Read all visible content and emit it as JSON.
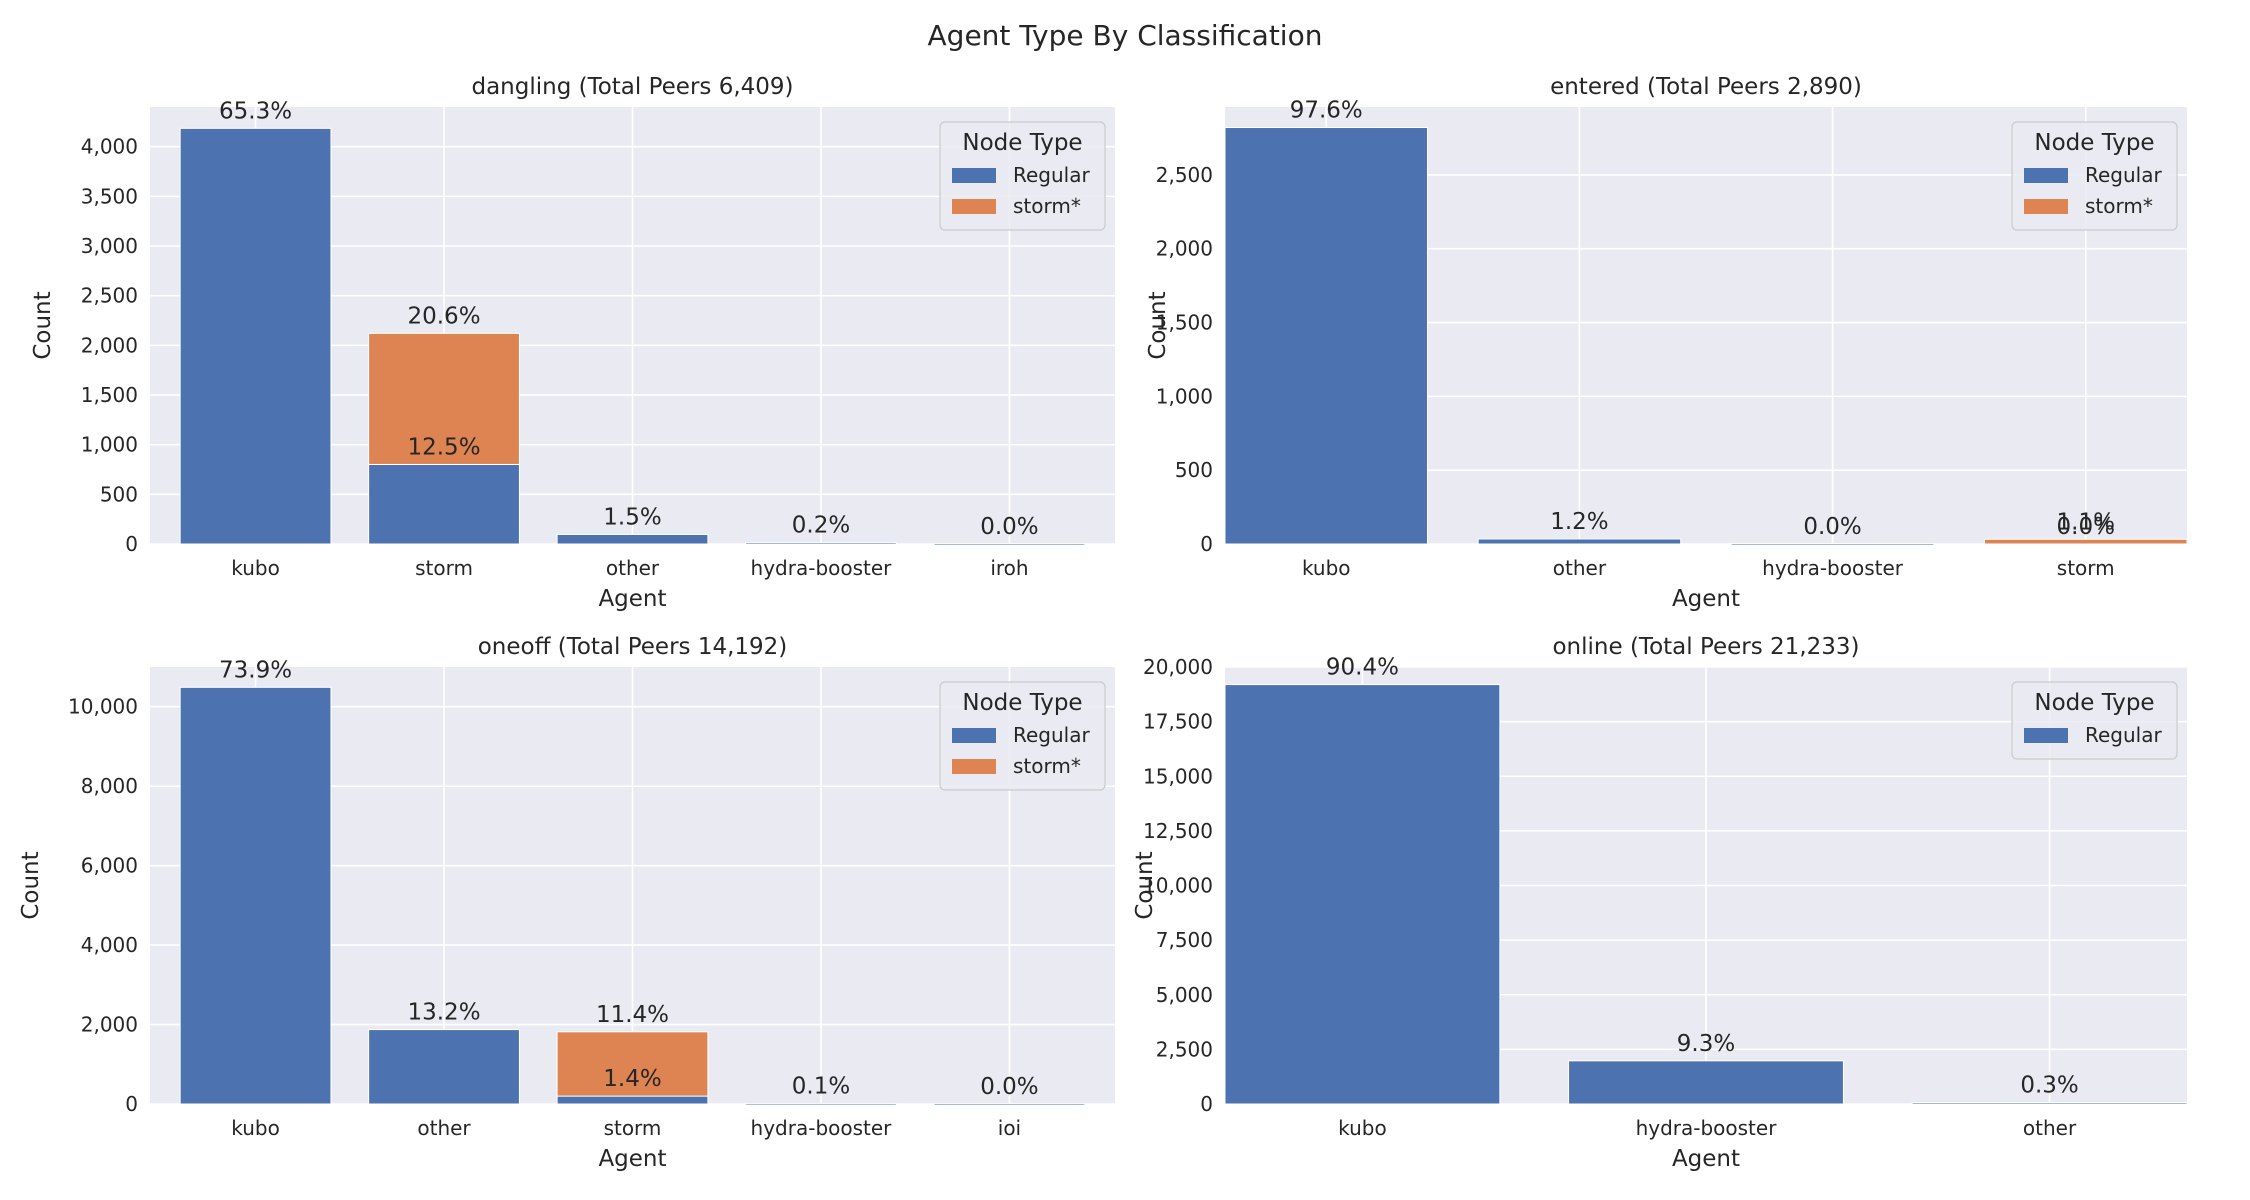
{
  "colors": {
    "regular": "#4c72b0",
    "storm": "#dd8452",
    "axes_bg": "#eaeaf2",
    "grid": "#ffffff",
    "text": "#262626"
  },
  "chart_data": {
    "title": "Agent Type By Classification",
    "panels": [
      {
        "type": "bar",
        "stacked": true,
        "title": "dangling (Total Peers 6,409)",
        "xlabel": "Agent",
        "ylabel": "Count",
        "ylim": [
          0,
          4400
        ],
        "yticks": [
          0,
          500,
          1000,
          1500,
          2000,
          2500,
          3000,
          3500,
          4000
        ],
        "ytick_labels": [
          "0",
          "500",
          "1,000",
          "1,500",
          "2,000",
          "2,500",
          "3,000",
          "3,500",
          "4,000"
        ],
        "categories": [
          "kubo",
          "storm",
          "other",
          "hydra-booster",
          "iroh"
        ],
        "series": [
          {
            "name": "Regular",
            "values": [
              4185,
              801,
              96,
              13,
              1
            ]
          },
          {
            "name": "storm*",
            "values": [
              0,
              1320,
              0,
              0,
              0
            ]
          }
        ],
        "labels": [
          {
            "category": "kubo",
            "text": "65.3%",
            "at": 4185
          },
          {
            "category": "storm",
            "text": "12.5%",
            "at": 801
          },
          {
            "category": "storm",
            "text": "20.6%",
            "at": 2121
          },
          {
            "category": "other",
            "text": "1.5%",
            "at": 96
          },
          {
            "category": "hydra-booster",
            "text": "0.2%",
            "at": 13
          },
          {
            "category": "iroh",
            "text": "0.0%",
            "at": 1
          }
        ],
        "legend": {
          "title": "Node Type",
          "position": "top-right",
          "entries": [
            "Regular",
            "storm*"
          ]
        }
      },
      {
        "type": "bar",
        "stacked": true,
        "title": "entered (Total Peers 2,890)",
        "xlabel": "Agent",
        "ylabel": "Count",
        "ylim": [
          0,
          2960
        ],
        "yticks": [
          0,
          500,
          1000,
          1500,
          2000,
          2500
        ],
        "ytick_labels": [
          "0",
          "500",
          "1,000",
          "1,500",
          "2,000",
          "2,500"
        ],
        "categories": [
          "kubo",
          "other",
          "hydra-booster",
          "storm"
        ],
        "series": [
          {
            "name": "Regular",
            "values": [
              2821,
              34,
              1,
              0
            ]
          },
          {
            "name": "storm*",
            "values": [
              0,
              0,
              0,
              32
            ]
          }
        ],
        "labels": [
          {
            "category": "kubo",
            "text": "97.6%",
            "at": 2821
          },
          {
            "category": "other",
            "text": "1.2%",
            "at": 34
          },
          {
            "category": "hydra-booster",
            "text": "0.0%",
            "at": 1
          },
          {
            "category": "storm",
            "text": "1.1%",
            "at": 32
          },
          {
            "category": "storm",
            "text": "0.0%",
            "at": 0
          }
        ],
        "legend": {
          "title": "Node Type",
          "position": "top-right",
          "entries": [
            "Regular",
            "storm*"
          ]
        }
      },
      {
        "type": "bar",
        "stacked": true,
        "title": "oneoff (Total Peers 14,192)",
        "xlabel": "Agent",
        "ylabel": "Count",
        "ylim": [
          0,
          11000
        ],
        "yticks": [
          0,
          2000,
          4000,
          6000,
          8000,
          10000
        ],
        "ytick_labels": [
          "0",
          "2,000",
          "4,000",
          "6,000",
          "8,000",
          "10,000"
        ],
        "categories": [
          "kubo",
          "other",
          "storm",
          "hydra-booster",
          "ioi"
        ],
        "series": [
          {
            "name": "Regular",
            "values": [
              10488,
              1873,
              199,
              14,
              1
            ]
          },
          {
            "name": "storm*",
            "values": [
              0,
              0,
              1618,
              0,
              0
            ]
          }
        ],
        "labels": [
          {
            "category": "kubo",
            "text": "73.9%",
            "at": 10488
          },
          {
            "category": "other",
            "text": "13.2%",
            "at": 1873
          },
          {
            "category": "storm",
            "text": "1.4%",
            "at": 199
          },
          {
            "category": "storm",
            "text": "11.4%",
            "at": 1817
          },
          {
            "category": "hydra-booster",
            "text": "0.1%",
            "at": 14
          },
          {
            "category": "ioi",
            "text": "0.0%",
            "at": 1
          }
        ],
        "legend": {
          "title": "Node Type",
          "position": "top-right",
          "entries": [
            "Regular",
            "storm*"
          ]
        }
      },
      {
        "type": "bar",
        "stacked": true,
        "title": "online (Total Peers 21,233)",
        "xlabel": "Agent",
        "ylabel": "Count",
        "ylim": [
          0,
          20000
        ],
        "yticks": [
          0,
          2500,
          5000,
          7500,
          10000,
          12500,
          15000,
          17500,
          20000
        ],
        "ytick_labels": [
          "0",
          "2,500",
          "5,000",
          "7,500",
          "10,000",
          "12,500",
          "15,000",
          "17,500",
          "20,000"
        ],
        "categories": [
          "kubo",
          "hydra-booster",
          "other"
        ],
        "series": [
          {
            "name": "Regular",
            "values": [
              19195,
              1975,
              64
            ]
          }
        ],
        "labels": [
          {
            "category": "kubo",
            "text": "90.4%",
            "at": 19195
          },
          {
            "category": "hydra-booster",
            "text": "9.3%",
            "at": 1975
          },
          {
            "category": "other",
            "text": "0.3%",
            "at": 64
          }
        ],
        "legend": {
          "title": "Node Type",
          "position": "top-right",
          "entries": [
            "Regular"
          ]
        }
      }
    ]
  }
}
